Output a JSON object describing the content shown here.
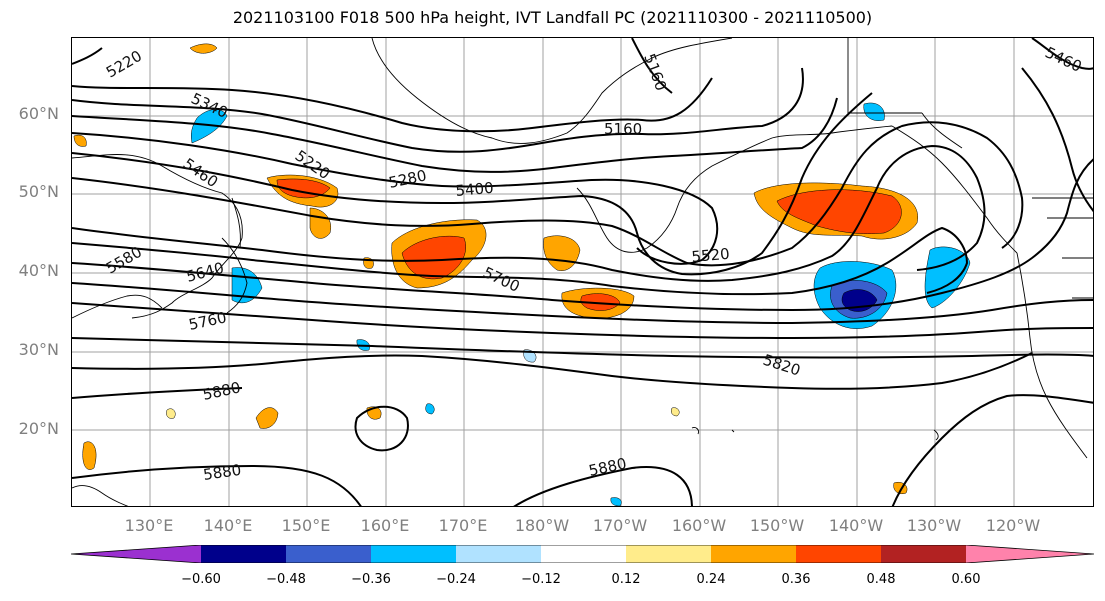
{
  "title": "2021103100 F018 500 hPa height, IVT Landfall PC (2021110300 - 2021110500)",
  "lat_labels": [
    "60°N",
    "50°N",
    "40°N",
    "30°N",
    "20°N"
  ],
  "lon_labels": [
    "130°E",
    "140°E",
    "150°E",
    "160°E",
    "170°E",
    "180°W",
    "170°W",
    "160°W",
    "150°W",
    "140°W",
    "130°W",
    "120°W"
  ],
  "contour_labels": [
    "5220",
    "5340",
    "5160",
    "5220",
    "5280",
    "5400",
    "5580",
    "5640",
    "5700",
    "5520",
    "5760",
    "5820",
    "5880",
    "5880",
    "5880",
    "5160",
    "5460",
    "5460"
  ],
  "colorbar": {
    "ticks": [
      "−0.60",
      "−0.48",
      "−0.36",
      "−0.24",
      "−0.12",
      "0.12",
      "0.24",
      "0.36",
      "0.48",
      "0.60"
    ],
    "colors": [
      "#9b30d0",
      "#00008b",
      "#3a5fcd",
      "#00bfff",
      "#b0e2ff",
      "#ffffff",
      "#ffec8b",
      "#ffa500",
      "#ff4500",
      "#b22222",
      "#ff82ab"
    ]
  }
}
